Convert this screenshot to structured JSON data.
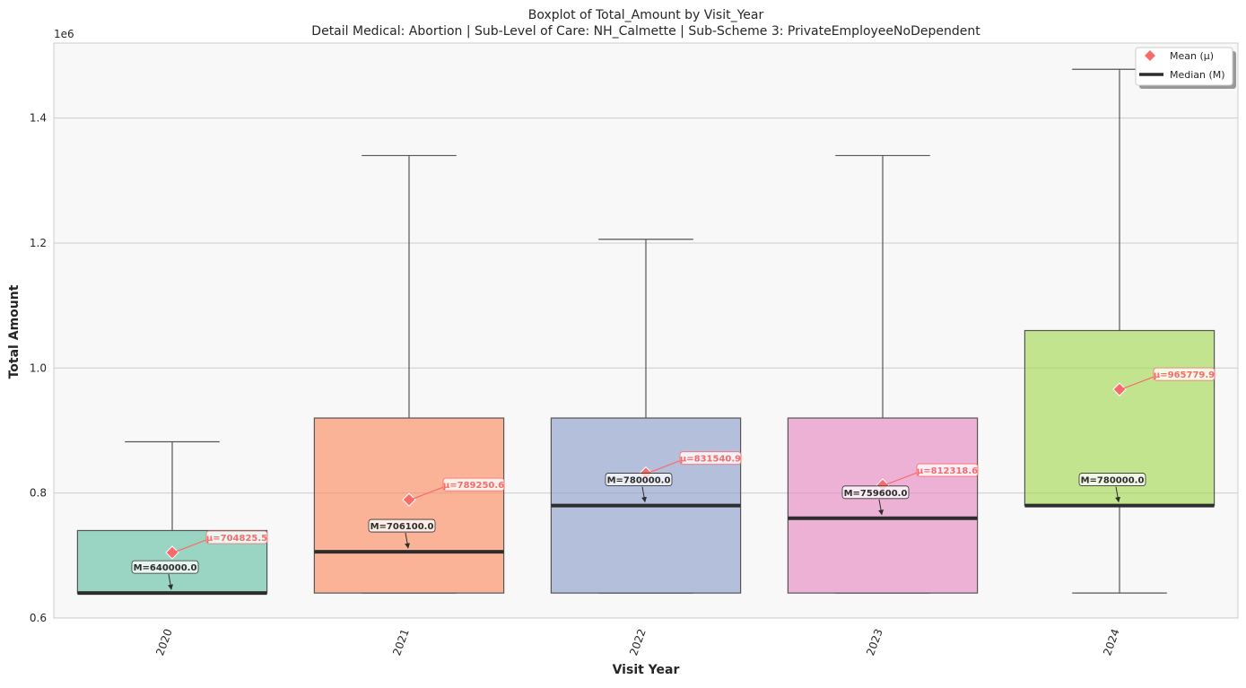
{
  "chart_data": {
    "type": "box",
    "title": "Boxplot of Total_Amount by Visit_Year",
    "subtitle": "Detail Medical: Abortion | Sub-Level of Care: NH_Calmette | Sub-Scheme 3: PrivateEmployeeNoDependent",
    "xlabel": "Visit Year",
    "ylabel": "Total Amount",
    "y_offset_label": "1e6",
    "y_scale_factor": 1000000,
    "ylim": [
      600000,
      1520000
    ],
    "yticks": [
      600000,
      800000,
      1000000,
      1200000,
      1400000
    ],
    "ytick_labels": [
      "0.6",
      "0.8",
      "1.0",
      "1.2",
      "1.4"
    ],
    "grid": true,
    "legend_position": "top-right",
    "legend": [
      {
        "label": "Mean (μ)",
        "kind": "mean",
        "color": "#f96b6b"
      },
      {
        "label": "Median (M)",
        "kind": "median",
        "color": "#2d2d2d"
      }
    ],
    "categories": [
      "2020",
      "2021",
      "2022",
      "2023",
      "2024"
    ],
    "boxes": [
      {
        "category": "2020",
        "whisker_low": 640000,
        "q1": 640000,
        "median": 640000,
        "q3": 740000,
        "whisker_high": 882000,
        "mean": 704825.5,
        "color": "#66c2a5",
        "mean_label": "μ=704825.5",
        "median_label": "M=640000.0"
      },
      {
        "category": "2021",
        "whisker_low": 640000,
        "q1": 640000,
        "median": 706100,
        "q3": 920000,
        "whisker_high": 1340000,
        "mean": 789250.6,
        "color": "#fc8d62",
        "mean_label": "μ=789250.6",
        "median_label": "M=706100.0"
      },
      {
        "category": "2022",
        "whisker_low": 640000,
        "q1": 640000,
        "median": 780000,
        "q3": 920000,
        "whisker_high": 1206000,
        "mean": 831540.9,
        "color": "#8da0cb",
        "mean_label": "μ=831540.9",
        "median_label": "M=780000.0"
      },
      {
        "category": "2023",
        "whisker_low": 640000,
        "q1": 640000,
        "median": 759600,
        "q3": 920000,
        "whisker_high": 1340000,
        "mean": 812318.6,
        "color": "#e78ac3",
        "mean_label": "μ=812318.6",
        "median_label": "M=759600.0"
      },
      {
        "category": "2024",
        "whisker_low": 640000,
        "q1": 780000,
        "median": 780000,
        "q3": 1060000,
        "whisker_high": 1478000,
        "mean": 965779.9,
        "color": "#a6d854",
        "mean_label": "μ=965779.9",
        "median_label": "M=780000.0"
      }
    ],
    "colors": {
      "plot_bg": "#f8f8f8",
      "grid": "#cccccc",
      "whisker": "#555555",
      "mean_marker": "#f96b6b",
      "median_line": "#2d2d2d"
    }
  }
}
